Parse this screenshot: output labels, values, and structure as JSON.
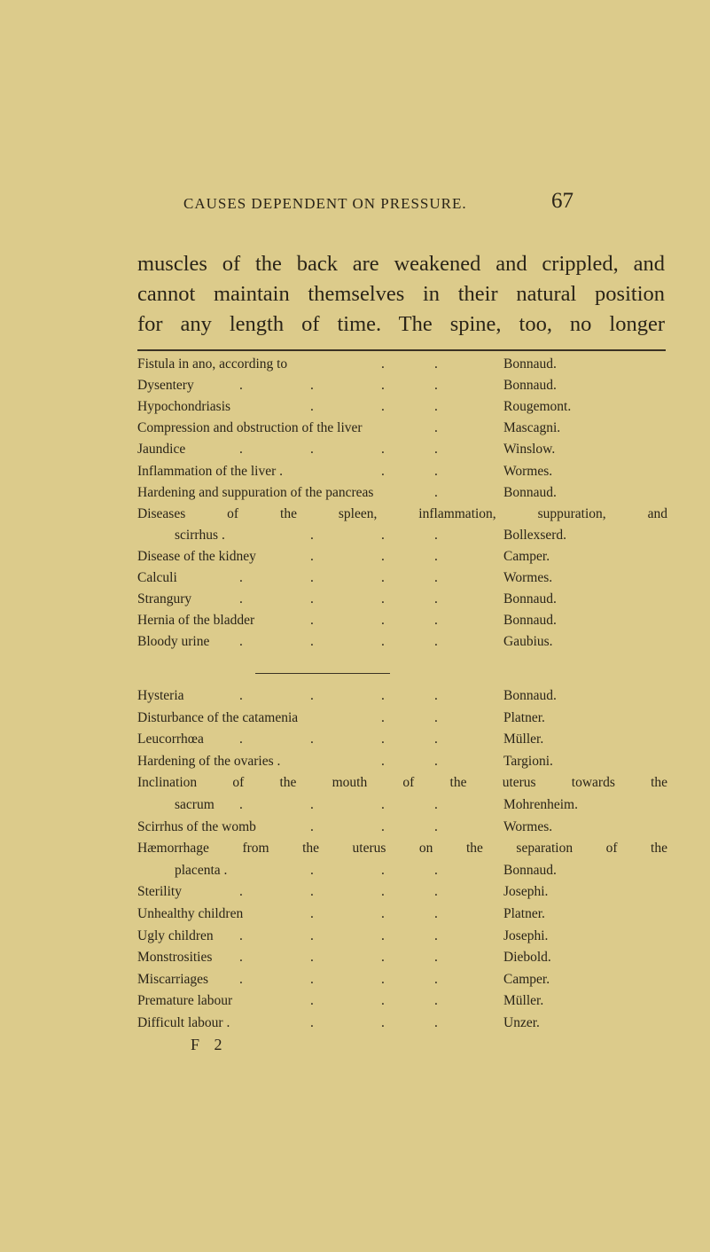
{
  "header": {
    "running_title": "CAUSES DEPENDENT ON PRESSURE.",
    "page_number": "67"
  },
  "body_lines": [
    "muscles of the back are weakened and crippled, and",
    "cannot maintain themselves in their natural position",
    "for any length of time. The spine, too, no longer"
  ],
  "table_1": [
    {
      "label": "Fistula in ano, according to",
      "dots": 2,
      "author": "Bonnaud."
    },
    {
      "label": "Dysentery",
      "dots": 4,
      "author": "Bonnaud."
    },
    {
      "label": "Hypochondriasis",
      "dots": 3,
      "author": "Rougemont."
    },
    {
      "label": "Compression and obstruction of the liver",
      "dots": 1,
      "author": "Mascagni."
    },
    {
      "label": "Jaundice",
      "dots": 4,
      "author": "Winslow."
    },
    {
      "label": "Inflammation of the liver .",
      "dots": 2,
      "author": "Wormes."
    },
    {
      "label": "Hardening and suppuration of the pancreas",
      "dots": 1,
      "author": "Bonnaud."
    },
    {
      "full": "Diseases of the spleen, inflammation, suppuration, and"
    },
    {
      "label": "scirrhus .",
      "indent": true,
      "dots": 3,
      "author": "Bollexserd."
    },
    {
      "label": "Disease of the kidney",
      "dots": 3,
      "author": "Camper."
    },
    {
      "label": "Calculi",
      "dots": 4,
      "author": "Wormes."
    },
    {
      "label": "Strangury",
      "dots": 4,
      "author": "Bonnaud."
    },
    {
      "label": "Hernia of the bladder",
      "dots": 3,
      "author": "Bonnaud."
    },
    {
      "label": "Bloody urine",
      "dots": 4,
      "author": "Gaubius."
    }
  ],
  "table_2": [
    {
      "label": "Hysteria",
      "dots": 4,
      "author": "Bonnaud."
    },
    {
      "label": "Disturbance of the catamenia",
      "dots": 2,
      "author": "Platner."
    },
    {
      "label": "Leucorrhœa",
      "dots": 4,
      "author": "Müller."
    },
    {
      "label": "Hardening of the ovaries .",
      "dots": 2,
      "author": "Targioni."
    },
    {
      "full": "Inclination of the mouth of the uterus towards the"
    },
    {
      "label": "sacrum",
      "indent": true,
      "dots": 4,
      "author": "Mohrenheim."
    },
    {
      "label": "Scirrhus of the womb",
      "dots": 3,
      "author": "Wormes."
    },
    {
      "full": "Hæmorrhage from the uterus on the separation of the"
    },
    {
      "label": "placenta .",
      "indent": true,
      "dots": 3,
      "author": "Bonnaud."
    },
    {
      "label": "Sterility",
      "dots": 4,
      "author": "Josephi."
    },
    {
      "label": "Unhealthy children",
      "dots": 3,
      "author": "Platner."
    },
    {
      "label": "Ugly children",
      "dots": 4,
      "author": "Josephi."
    },
    {
      "label": "Monstrosities",
      "dots": 4,
      "author": "Diebold."
    },
    {
      "label": "Miscarriages",
      "dots": 4,
      "author": "Camper."
    },
    {
      "label": "Premature labour",
      "dots": 3,
      "author": "Müller."
    },
    {
      "label": "Difficult labour .",
      "dots": 3,
      "author": "Unzer."
    }
  ],
  "signature_mark": "F 2"
}
